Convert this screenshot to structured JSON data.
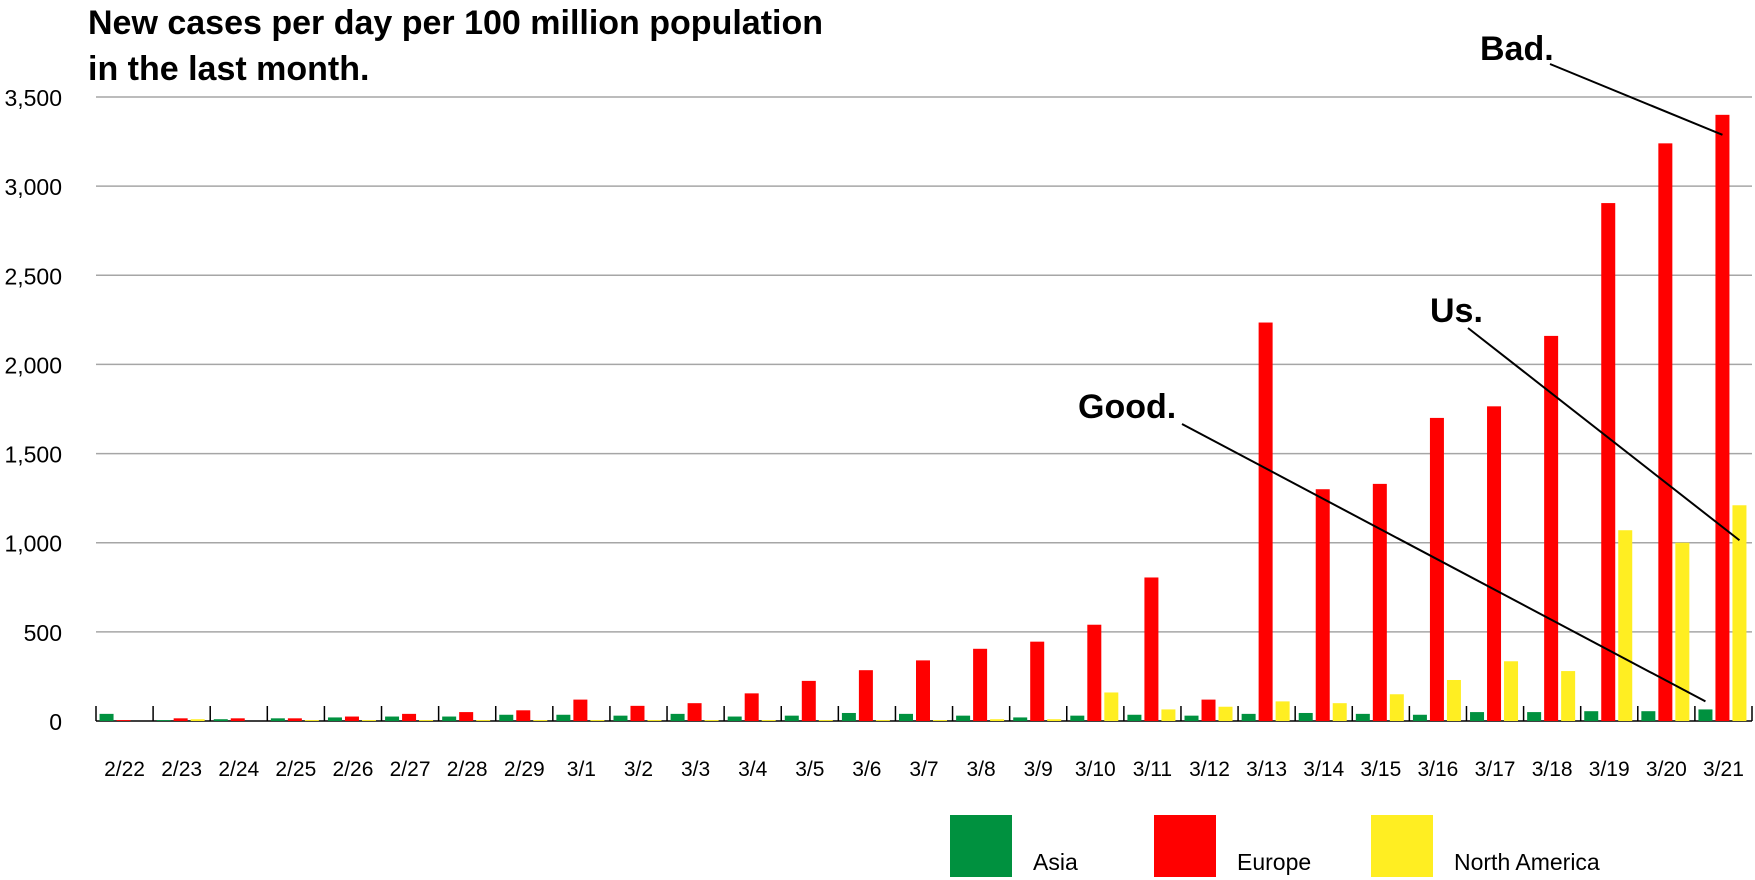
{
  "title_lines": [
    "New cases per day per 100 million population",
    "in the last month."
  ],
  "colors": {
    "asia": "#00913f",
    "europe": "#ff0000",
    "north_america": "#ffee22"
  },
  "chart_data": {
    "type": "bar",
    "title": "New cases per day per 100 million population in the last month.",
    "categories": [
      "2/22",
      "2/23",
      "2/24",
      "2/25",
      "2/26",
      "2/27",
      "2/28",
      "2/29",
      "3/1",
      "3/2",
      "3/3",
      "3/4",
      "3/5",
      "3/6",
      "3/7",
      "3/8",
      "3/9",
      "3/10",
      "3/11",
      "3/12",
      "3/13",
      "3/14",
      "3/15",
      "3/16",
      "3/17",
      "3/18",
      "3/19",
      "3/20",
      "3/21"
    ],
    "series": [
      {
        "name": "Asia",
        "color": "#00913f",
        "values": [
          40,
          5,
          10,
          15,
          20,
          25,
          25,
          35,
          35,
          30,
          40,
          25,
          30,
          45,
          40,
          30,
          20,
          30,
          35,
          30,
          40,
          45,
          40,
          35,
          50,
          50,
          55,
          55,
          65
        ]
      },
      {
        "name": "Europe",
        "color": "#ff0000",
        "values": [
          5,
          15,
          15,
          15,
          25,
          40,
          50,
          60,
          120,
          85,
          100,
          155,
          225,
          285,
          340,
          405,
          445,
          540,
          805,
          120,
          2235,
          1300,
          1330,
          1700,
          1765,
          2160,
          2905,
          3240,
          3400
        ]
      },
      {
        "name": "North America",
        "color": "#ffee22",
        "values": [
          0,
          10,
          0,
          5,
          5,
          5,
          5,
          5,
          5,
          5,
          5,
          5,
          5,
          5,
          5,
          10,
          10,
          160,
          65,
          80,
          110,
          100,
          150,
          230,
          335,
          280,
          1070,
          1000,
          1210
        ]
      }
    ],
    "xlabel": "",
    "ylabel": "",
    "ylim": [
      0,
      3500
    ],
    "yticks": [
      0,
      500,
      1000,
      1500,
      2000,
      2500,
      3000,
      3500
    ],
    "ytick_labels": [
      "0",
      "500",
      "1,000",
      "1,500",
      "2,000",
      "2,500",
      "3,000",
      "3,500"
    ],
    "grid": true,
    "legend_placement": "bottom-right",
    "annotations": [
      {
        "text": "Bad.",
        "category": "3/21",
        "series": "Europe"
      },
      {
        "text": "Us.",
        "category": "3/21",
        "series": "North America"
      },
      {
        "text": "Good.",
        "category": "3/21",
        "series": "Asia"
      }
    ]
  }
}
